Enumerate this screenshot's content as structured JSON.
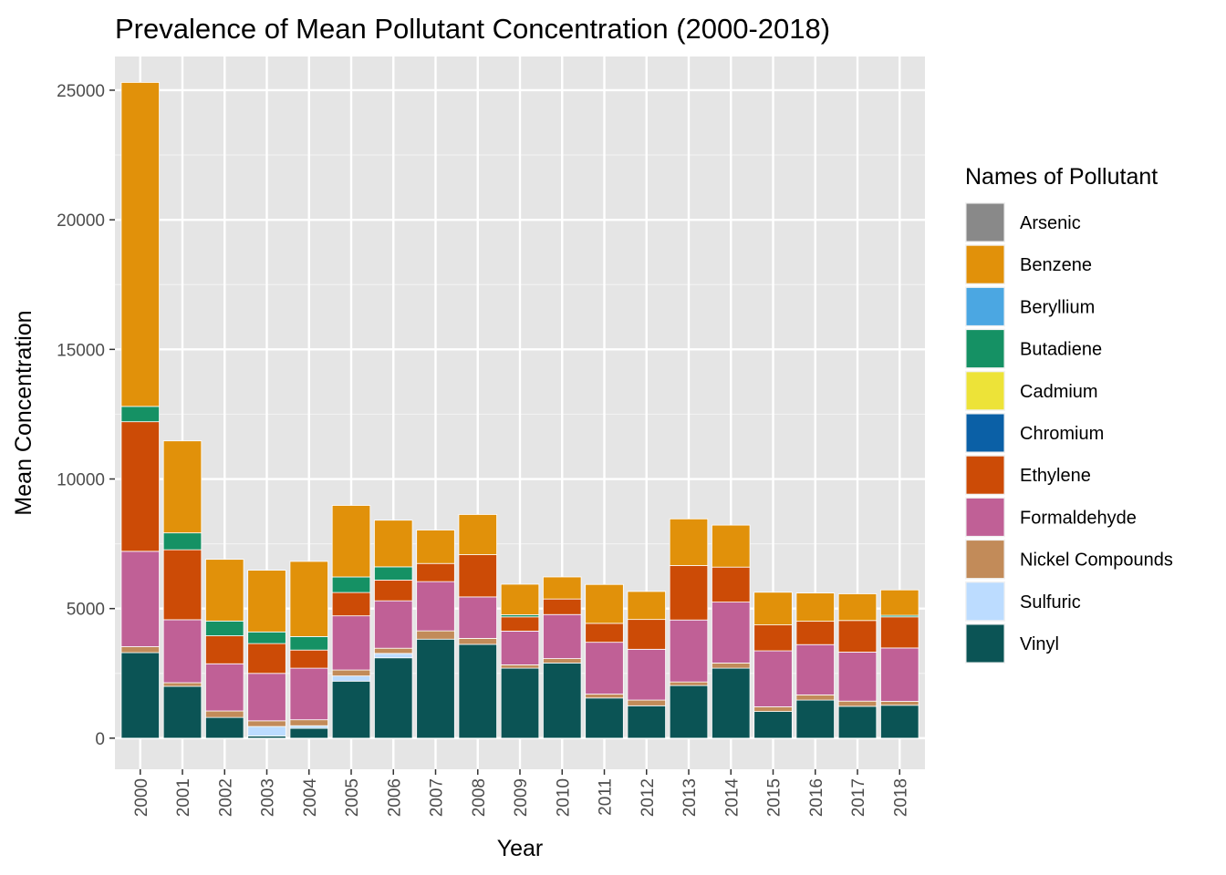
{
  "chart_data": {
    "type": "bar",
    "stacked": true,
    "title": "Prevalence of Mean Pollutant Concentration (2000-2018)",
    "xlabel": "Year",
    "ylabel": "Mean Concentration",
    "ylim": [
      -1200,
      26300
    ],
    "yticks": [
      0,
      5000,
      10000,
      15000,
      20000,
      25000
    ],
    "grid": true,
    "legend_title": "Names of Pollutant",
    "legend_position": "right",
    "categories": [
      "2000",
      "2001",
      "2002",
      "2003",
      "2004",
      "2005",
      "2006",
      "2007",
      "2008",
      "2009",
      "2010",
      "2011",
      "2012",
      "2013",
      "2014",
      "2015",
      "2016",
      "2017",
      "2018"
    ],
    "series": [
      {
        "name": "Vinyl",
        "color": "#0b5455",
        "values": [
          3300,
          2000,
          800,
          80,
          380,
          2200,
          3100,
          3820,
          3620,
          2700,
          2900,
          1550,
          1250,
          2030,
          2700,
          1030,
          1470,
          1230,
          1270
        ]
      },
      {
        "name": "Sulfuric",
        "color": "#bcdcff",
        "values": [
          0,
          0,
          0,
          370,
          100,
          200,
          170,
          0,
          0,
          0,
          0,
          0,
          0,
          0,
          0,
          0,
          0,
          0,
          0
        ]
      },
      {
        "name": "Nickel Compounds",
        "color": "#c28b59",
        "values": [
          230,
          140,
          250,
          220,
          230,
          230,
          200,
          320,
          230,
          130,
          170,
          150,
          220,
          140,
          200,
          180,
          200,
          200,
          150
        ]
      },
      {
        "name": "Formaldehyde",
        "color": "#c06096",
        "values": [
          3680,
          2430,
          1820,
          1830,
          1990,
          2090,
          1830,
          1900,
          1600,
          1300,
          1700,
          2000,
          1960,
          2390,
          2350,
          2160,
          1940,
          1890,
          2060
        ]
      },
      {
        "name": "Ethylene",
        "color": "#cc4b06",
        "values": [
          5000,
          2700,
          1080,
          1150,
          700,
          900,
          800,
          700,
          1630,
          550,
          600,
          730,
          1150,
          2100,
          1350,
          1000,
          900,
          1220,
          1200
        ]
      },
      {
        "name": "Chromium",
        "color": "#0b60a6",
        "values": [
          0,
          0,
          0,
          0,
          0,
          0,
          0,
          0,
          0,
          0,
          0,
          0,
          0,
          0,
          0,
          0,
          0,
          0,
          0
        ]
      },
      {
        "name": "Cadmium",
        "color": "#ede338",
        "values": [
          0,
          0,
          0,
          0,
          0,
          0,
          0,
          0,
          0,
          0,
          0,
          0,
          0,
          0,
          0,
          0,
          0,
          0,
          0
        ]
      },
      {
        "name": "Butadiene",
        "color": "#159164",
        "values": [
          590,
          650,
          570,
          450,
          520,
          600,
          510,
          0,
          0,
          80,
          0,
          0,
          0,
          0,
          0,
          0,
          0,
          0,
          60
        ]
      },
      {
        "name": "Beryllium",
        "color": "#4ba7e2",
        "values": [
          0,
          0,
          0,
          0,
          0,
          0,
          0,
          0,
          0,
          0,
          0,
          0,
          0,
          0,
          0,
          0,
          0,
          0,
          0
        ]
      },
      {
        "name": "Benzene",
        "color": "#e1910a",
        "values": [
          12500,
          3550,
          2380,
          2380,
          2900,
          2760,
          1800,
          1290,
          1550,
          1180,
          850,
          1500,
          1080,
          1800,
          1620,
          1260,
          1090,
          1030,
          980
        ]
      },
      {
        "name": "Arsenic",
        "color": "#898989",
        "values": [
          0,
          0,
          0,
          0,
          0,
          0,
          0,
          0,
          0,
          0,
          0,
          0,
          0,
          0,
          0,
          0,
          0,
          0,
          0
        ]
      }
    ],
    "legend_order": [
      "Arsenic",
      "Benzene",
      "Beryllium",
      "Butadiene",
      "Cadmium",
      "Chromium",
      "Ethylene",
      "Formaldehyde",
      "Nickel Compounds",
      "Sulfuric",
      "Vinyl"
    ]
  }
}
